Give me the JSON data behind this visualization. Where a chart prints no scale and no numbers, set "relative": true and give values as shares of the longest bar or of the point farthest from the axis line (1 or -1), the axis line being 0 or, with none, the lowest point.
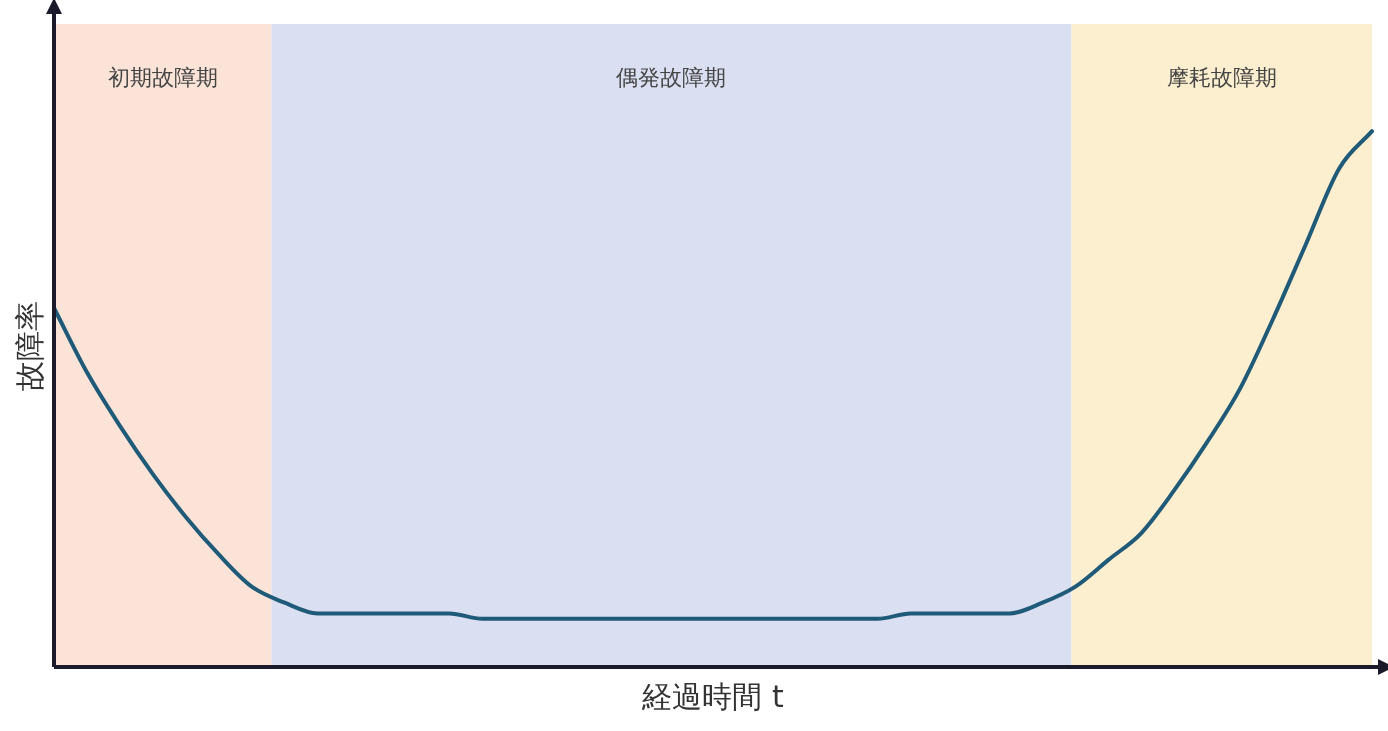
{
  "chart_data": {
    "type": "line",
    "relative": true,
    "xlabel": "経過時間 t",
    "ylabel": "故障率",
    "categories": [
      null,
      null,
      null,
      null,
      null,
      null,
      null,
      null,
      null,
      null,
      null,
      null,
      null,
      null,
      null,
      null,
      null,
      null,
      null,
      null,
      null,
      null,
      null,
      null,
      null,
      null,
      null,
      null,
      null,
      null,
      null,
      null,
      null,
      null,
      null,
      null,
      null,
      null,
      null,
      null,
      null
    ],
    "series": [
      {
        "color": "#1f5a78",
        "values": [
          0.67,
          0.55,
          0.45,
          0.36,
          0.28,
          0.21,
          0.15,
          0.12,
          0.1,
          0.1,
          0.1,
          0.1,
          0.1,
          0.09,
          0.09,
          0.09,
          0.09,
          0.09,
          0.09,
          0.09,
          0.09,
          0.09,
          0.09,
          0.09,
          0.09,
          0.09,
          0.1,
          0.1,
          0.1,
          0.1,
          0.12,
          0.15,
          0.2,
          0.25,
          0.33,
          0.42,
          0.52,
          0.65,
          0.79,
          0.93,
          1.0
        ]
      }
    ],
    "annotations": [
      "初期故障期",
      "偶発故障期",
      "摩耗故障期"
    ],
    "grid": false,
    "legend": false,
    "marker": "none",
    "line_style": "solid"
  }
}
